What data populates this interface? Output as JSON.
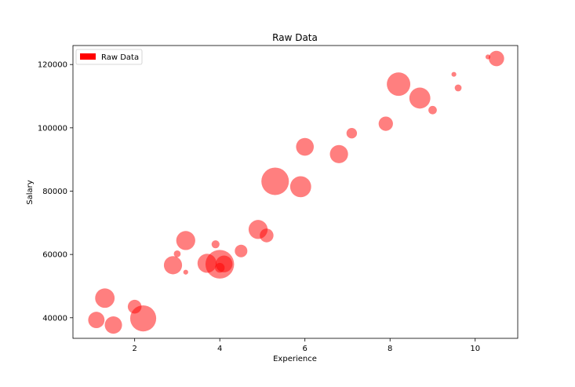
{
  "chart_data": {
    "type": "scatter",
    "title": "Raw Data",
    "xlabel": "Experience",
    "ylabel": "Salary",
    "xlim": [
      0.55,
      11.0
    ],
    "ylim": [
      33500,
      126000
    ],
    "xticks": [
      2,
      4,
      6,
      8,
      10
    ],
    "yticks": [
      40000,
      60000,
      80000,
      100000,
      120000
    ],
    "legend": {
      "label": "Raw Data",
      "placement": "top-left"
    },
    "color": "#ff0000",
    "alpha": 0.5,
    "series": [
      {
        "name": "Raw Data",
        "points": [
          {
            "x": 1.1,
            "y": 39300,
            "size": 170
          },
          {
            "x": 1.3,
            "y": 46200,
            "size": 240
          },
          {
            "x": 1.5,
            "y": 37700,
            "size": 190
          },
          {
            "x": 2.0,
            "y": 43500,
            "size": 120
          },
          {
            "x": 2.2,
            "y": 39800,
            "size": 430
          },
          {
            "x": 2.9,
            "y": 56600,
            "size": 210
          },
          {
            "x": 3.0,
            "y": 60200,
            "size": 30
          },
          {
            "x": 3.2,
            "y": 54400,
            "size": 15
          },
          {
            "x": 3.2,
            "y": 64400,
            "size": 230
          },
          {
            "x": 3.7,
            "y": 57200,
            "size": 230
          },
          {
            "x": 3.9,
            "y": 63200,
            "size": 40
          },
          {
            "x": 4.0,
            "y": 55800,
            "size": 60
          },
          {
            "x": 4.0,
            "y": 56900,
            "size": 520
          },
          {
            "x": 4.1,
            "y": 57000,
            "size": 180
          },
          {
            "x": 4.5,
            "y": 61100,
            "size": 100
          },
          {
            "x": 4.9,
            "y": 67900,
            "size": 230
          },
          {
            "x": 5.1,
            "y": 66000,
            "size": 120
          },
          {
            "x": 5.3,
            "y": 83100,
            "size": 480
          },
          {
            "x": 5.9,
            "y": 81400,
            "size": 280
          },
          {
            "x": 6.0,
            "y": 94000,
            "size": 200
          },
          {
            "x": 6.8,
            "y": 91700,
            "size": 210
          },
          {
            "x": 7.1,
            "y": 98300,
            "size": 70
          },
          {
            "x": 7.9,
            "y": 101300,
            "size": 130
          },
          {
            "x": 8.2,
            "y": 113800,
            "size": 350
          },
          {
            "x": 8.7,
            "y": 109400,
            "size": 280
          },
          {
            "x": 9.0,
            "y": 105600,
            "size": 45
          },
          {
            "x": 9.5,
            "y": 116900,
            "size": 15
          },
          {
            "x": 9.6,
            "y": 112600,
            "size": 30
          },
          {
            "x": 10.3,
            "y": 122400,
            "size": 15
          },
          {
            "x": 10.5,
            "y": 121900,
            "size": 150
          }
        ]
      }
    ]
  }
}
